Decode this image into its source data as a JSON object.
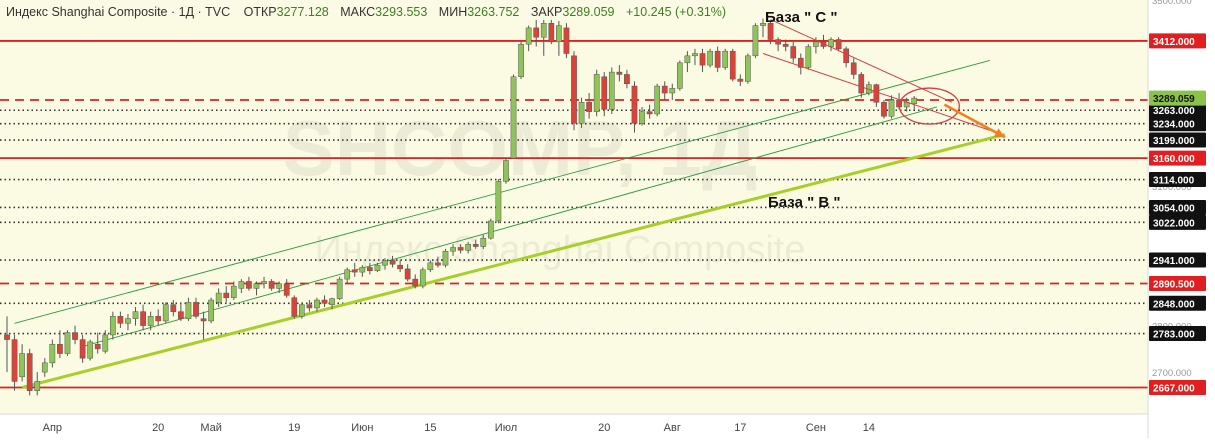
{
  "header": {
    "title": "Индекс Shanghai Composite · 1Д · TVC",
    "open_label": "ОТКР",
    "open": "3277.128",
    "high_label": "МАКС",
    "high": "3293.553",
    "low_label": "МИН",
    "low": "3263.752",
    "close_label": "ЗАКР",
    "close": "3289.059",
    "change": "+10.245 (+0.31%)"
  },
  "watermark": {
    "symbol": "SHCOMP, 1Д",
    "name": "Индекс Shanghai Composite"
  },
  "annotations": {
    "base_c": "База \" С \"",
    "base_b": "База \" В \""
  },
  "colors": {
    "background": "#ffffff",
    "plot_background": "#fbfbe4",
    "up_candle": "#8fc45a",
    "down_candle": "#d9443a",
    "level_line": "#e02020",
    "dotted_level": "#333333",
    "channel_line": "#2f9a3a",
    "trend_support": "#a7cf2a",
    "downtrend_channel": "#d04040",
    "projection_arrow": "#f08020",
    "price_badge_last": "#8bc34a"
  },
  "chart_data": {
    "type": "candlestick",
    "title": "Индекс Shanghai Composite · 1Д · TVC",
    "timeframe": "1Д",
    "ylim": [
      2610,
      3500
    ],
    "y_ticks": [
      {
        "value": 3500,
        "label": "3500.000"
      },
      {
        "value": 3300,
        "label": "3300.000"
      },
      {
        "value": 3100,
        "label": "3100.000"
      },
      {
        "value": 2900,
        "label": "2900.000"
      },
      {
        "value": 2800,
        "label": "2800.000"
      },
      {
        "value": 2700,
        "label": "2700.000"
      }
    ],
    "x_labels": [
      {
        "idx": 6,
        "label": "Апр"
      },
      {
        "idx": 20,
        "label": "20"
      },
      {
        "idx": 27,
        "label": "Май"
      },
      {
        "idx": 38,
        "label": "19"
      },
      {
        "idx": 47,
        "label": "Июн"
      },
      {
        "idx": 56,
        "label": "15"
      },
      {
        "idx": 66,
        "label": "Июл"
      },
      {
        "idx": 79,
        "label": "20"
      },
      {
        "idx": 88,
        "label": "Авг"
      },
      {
        "idx": 97,
        "label": "17"
      },
      {
        "idx": 107,
        "label": "Сен"
      },
      {
        "idx": 114,
        "label": "14"
      }
    ],
    "levels": [
      {
        "value": 3412,
        "label": "3412.000",
        "style": "solid-red"
      },
      {
        "value": 3285,
        "label": "3285.000",
        "style": "dashed-red"
      },
      {
        "value": 3263,
        "label": "3263.000",
        "style": "dotted"
      },
      {
        "value": 3234,
        "label": "3234.000",
        "style": "dotted"
      },
      {
        "value": 3199,
        "label": "3199.000",
        "style": "dotted"
      },
      {
        "value": 3160,
        "label": "3160.000",
        "style": "solid-red"
      },
      {
        "value": 3114,
        "label": "3114.000",
        "style": "dotted"
      },
      {
        "value": 3054,
        "label": "3054.000",
        "style": "dotted"
      },
      {
        "value": 3022,
        "label": "3022.000",
        "style": "dotted"
      },
      {
        "value": 2941,
        "label": "2941.000",
        "style": "dotted"
      },
      {
        "value": 2890.5,
        "label": "2890.500",
        "style": "dashed-red"
      },
      {
        "value": 2848,
        "label": "2848.000",
        "style": "dotted"
      },
      {
        "value": 2783,
        "label": "2783.000",
        "style": "dotted"
      },
      {
        "value": 2667,
        "label": "2667.000",
        "style": "solid-red"
      }
    ],
    "last_price": {
      "value": 3289.059,
      "label": "3289.059"
    },
    "candles": [
      {
        "o": 2780,
        "h": 2820,
        "l": 2700,
        "c": 2770
      },
      {
        "o": 2770,
        "h": 2780,
        "l": 2660,
        "c": 2680
      },
      {
        "o": 2690,
        "h": 2760,
        "l": 2680,
        "c": 2740
      },
      {
        "o": 2740,
        "h": 2750,
        "l": 2650,
        "c": 2660
      },
      {
        "o": 2660,
        "h": 2700,
        "l": 2650,
        "c": 2680
      },
      {
        "o": 2700,
        "h": 2730,
        "l": 2690,
        "c": 2720
      },
      {
        "o": 2720,
        "h": 2770,
        "l": 2710,
        "c": 2760
      },
      {
        "o": 2760,
        "h": 2790,
        "l": 2730,
        "c": 2740
      },
      {
        "o": 2740,
        "h": 2790,
        "l": 2735,
        "c": 2785
      },
      {
        "o": 2785,
        "h": 2800,
        "l": 2760,
        "c": 2770
      },
      {
        "o": 2770,
        "h": 2780,
        "l": 2720,
        "c": 2730
      },
      {
        "o": 2730,
        "h": 2770,
        "l": 2725,
        "c": 2765
      },
      {
        "o": 2760,
        "h": 2785,
        "l": 2740,
        "c": 2750
      },
      {
        "o": 2745,
        "h": 2790,
        "l": 2740,
        "c": 2780
      },
      {
        "o": 2780,
        "h": 2830,
        "l": 2770,
        "c": 2820
      },
      {
        "o": 2820,
        "h": 2830,
        "l": 2795,
        "c": 2805
      },
      {
        "o": 2805,
        "h": 2825,
        "l": 2790,
        "c": 2815
      },
      {
        "o": 2815,
        "h": 2840,
        "l": 2800,
        "c": 2830
      },
      {
        "o": 2830,
        "h": 2845,
        "l": 2790,
        "c": 2800
      },
      {
        "o": 2800,
        "h": 2830,
        "l": 2790,
        "c": 2820
      },
      {
        "o": 2820,
        "h": 2835,
        "l": 2800,
        "c": 2810
      },
      {
        "o": 2810,
        "h": 2850,
        "l": 2805,
        "c": 2845
      },
      {
        "o": 2845,
        "h": 2855,
        "l": 2820,
        "c": 2830
      },
      {
        "o": 2830,
        "h": 2850,
        "l": 2810,
        "c": 2815
      },
      {
        "o": 2815,
        "h": 2860,
        "l": 2810,
        "c": 2850
      },
      {
        "o": 2850,
        "h": 2860,
        "l": 2815,
        "c": 2820
      },
      {
        "o": 2815,
        "h": 2830,
        "l": 2770,
        "c": 2810
      },
      {
        "o": 2810,
        "h": 2860,
        "l": 2805,
        "c": 2855
      },
      {
        "o": 2850,
        "h": 2880,
        "l": 2840,
        "c": 2870
      },
      {
        "o": 2870,
        "h": 2885,
        "l": 2850,
        "c": 2860
      },
      {
        "o": 2860,
        "h": 2895,
        "l": 2855,
        "c": 2885
      },
      {
        "o": 2880,
        "h": 2900,
        "l": 2870,
        "c": 2895
      },
      {
        "o": 2895,
        "h": 2905,
        "l": 2875,
        "c": 2880
      },
      {
        "o": 2880,
        "h": 2895,
        "l": 2865,
        "c": 2890
      },
      {
        "o": 2890,
        "h": 2905,
        "l": 2880,
        "c": 2895
      },
      {
        "o": 2895,
        "h": 2900,
        "l": 2875,
        "c": 2880
      },
      {
        "o": 2880,
        "h": 2895,
        "l": 2870,
        "c": 2890
      },
      {
        "o": 2890,
        "h": 2900,
        "l": 2860,
        "c": 2865
      },
      {
        "o": 2860,
        "h": 2865,
        "l": 2815,
        "c": 2820
      },
      {
        "o": 2820,
        "h": 2850,
        "l": 2815,
        "c": 2845
      },
      {
        "o": 2845,
        "h": 2855,
        "l": 2830,
        "c": 2838
      },
      {
        "o": 2838,
        "h": 2860,
        "l": 2830,
        "c": 2855
      },
      {
        "o": 2855,
        "h": 2865,
        "l": 2840,
        "c": 2848
      },
      {
        "o": 2845,
        "h": 2860,
        "l": 2835,
        "c": 2858
      },
      {
        "o": 2858,
        "h": 2905,
        "l": 2855,
        "c": 2900
      },
      {
        "o": 2900,
        "h": 2925,
        "l": 2890,
        "c": 2920
      },
      {
        "o": 2920,
        "h": 2935,
        "l": 2905,
        "c": 2915
      },
      {
        "o": 2915,
        "h": 2930,
        "l": 2905,
        "c": 2925
      },
      {
        "o": 2925,
        "h": 2935,
        "l": 2910,
        "c": 2918
      },
      {
        "o": 2918,
        "h": 2935,
        "l": 2915,
        "c": 2930
      },
      {
        "o": 2930,
        "h": 2945,
        "l": 2920,
        "c": 2940
      },
      {
        "o": 2940,
        "h": 2950,
        "l": 2925,
        "c": 2932
      },
      {
        "o": 2930,
        "h": 2940,
        "l": 2915,
        "c": 2922
      },
      {
        "o": 2922,
        "h": 2932,
        "l": 2895,
        "c": 2900
      },
      {
        "o": 2900,
        "h": 2910,
        "l": 2880,
        "c": 2885
      },
      {
        "o": 2885,
        "h": 2925,
        "l": 2880,
        "c": 2920
      },
      {
        "o": 2920,
        "h": 2940,
        "l": 2915,
        "c": 2935
      },
      {
        "o": 2935,
        "h": 2948,
        "l": 2925,
        "c": 2930
      },
      {
        "o": 2930,
        "h": 2965,
        "l": 2925,
        "c": 2960
      },
      {
        "o": 2960,
        "h": 2975,
        "l": 2950,
        "c": 2968
      },
      {
        "o": 2968,
        "h": 2975,
        "l": 2955,
        "c": 2962
      },
      {
        "o": 2962,
        "h": 2980,
        "l": 2955,
        "c": 2975
      },
      {
        "o": 2975,
        "h": 2985,
        "l": 2965,
        "c": 2970
      },
      {
        "o": 2970,
        "h": 2995,
        "l": 2965,
        "c": 2988
      },
      {
        "o": 2988,
        "h": 3030,
        "l": 2985,
        "c": 3025
      },
      {
        "o": 3025,
        "h": 3115,
        "l": 3020,
        "c": 3110
      },
      {
        "o": 3110,
        "h": 3160,
        "l": 3105,
        "c": 3155
      },
      {
        "o": 3160,
        "h": 3340,
        "l": 3160,
        "c": 3335
      },
      {
        "o": 3335,
        "h": 3410,
        "l": 3330,
        "c": 3405
      },
      {
        "o": 3405,
        "h": 3445,
        "l": 3390,
        "c": 3440
      },
      {
        "o": 3440,
        "h": 3460,
        "l": 3400,
        "c": 3420
      },
      {
        "o": 3420,
        "h": 3460,
        "l": 3380,
        "c": 3450
      },
      {
        "o": 3450,
        "h": 3470,
        "l": 3405,
        "c": 3410
      },
      {
        "o": 3410,
        "h": 3455,
        "l": 3380,
        "c": 3445
      },
      {
        "o": 3440,
        "h": 3450,
        "l": 3375,
        "c": 3385
      },
      {
        "o": 3380,
        "h": 3390,
        "l": 3220,
        "c": 3235
      },
      {
        "o": 3235,
        "h": 3290,
        "l": 3225,
        "c": 3280
      },
      {
        "o": 3280,
        "h": 3300,
        "l": 3245,
        "c": 3260
      },
      {
        "o": 3260,
        "h": 3350,
        "l": 3250,
        "c": 3340
      },
      {
        "o": 3335,
        "h": 3345,
        "l": 3250,
        "c": 3265
      },
      {
        "o": 3265,
        "h": 3355,
        "l": 3255,
        "c": 3345
      },
      {
        "o": 3345,
        "h": 3360,
        "l": 3325,
        "c": 3340
      },
      {
        "o": 3340,
        "h": 3350,
        "l": 3310,
        "c": 3320
      },
      {
        "o": 3315,
        "h": 3325,
        "l": 3215,
        "c": 3235
      },
      {
        "o": 3235,
        "h": 3270,
        "l": 3230,
        "c": 3260
      },
      {
        "o": 3260,
        "h": 3275,
        "l": 3245,
        "c": 3255
      },
      {
        "o": 3255,
        "h": 3320,
        "l": 3250,
        "c": 3315
      },
      {
        "o": 3315,
        "h": 3325,
        "l": 3285,
        "c": 3300
      },
      {
        "o": 3300,
        "h": 3320,
        "l": 3285,
        "c": 3310
      },
      {
        "o": 3310,
        "h": 3370,
        "l": 3305,
        "c": 3365
      },
      {
        "o": 3365,
        "h": 3390,
        "l": 3345,
        "c": 3380
      },
      {
        "o": 3380,
        "h": 3395,
        "l": 3360,
        "c": 3385
      },
      {
        "o": 3385,
        "h": 3395,
        "l": 3345,
        "c": 3360
      },
      {
        "o": 3360,
        "h": 3395,
        "l": 3355,
        "c": 3390
      },
      {
        "o": 3390,
        "h": 3400,
        "l": 3345,
        "c": 3355
      },
      {
        "o": 3355,
        "h": 3395,
        "l": 3350,
        "c": 3390
      },
      {
        "o": 3390,
        "h": 3395,
        "l": 3325,
        "c": 3330
      },
      {
        "o": 3330,
        "h": 3340,
        "l": 3315,
        "c": 3325
      },
      {
        "o": 3325,
        "h": 3385,
        "l": 3320,
        "c": 3380
      },
      {
        "o": 3380,
        "h": 3450,
        "l": 3375,
        "c": 3445
      },
      {
        "o": 3445,
        "h": 3460,
        "l": 3420,
        "c": 3450
      },
      {
        "o": 3450,
        "h": 3455,
        "l": 3405,
        "c": 3415
      },
      {
        "o": 3415,
        "h": 3420,
        "l": 3390,
        "c": 3405
      },
      {
        "o": 3405,
        "h": 3415,
        "l": 3390,
        "c": 3400
      },
      {
        "o": 3400,
        "h": 3410,
        "l": 3365,
        "c": 3375
      },
      {
        "o": 3375,
        "h": 3385,
        "l": 3340,
        "c": 3355
      },
      {
        "o": 3355,
        "h": 3405,
        "l": 3350,
        "c": 3400
      },
      {
        "o": 3400,
        "h": 3420,
        "l": 3385,
        "c": 3410
      },
      {
        "o": 3410,
        "h": 3425,
        "l": 3395,
        "c": 3400
      },
      {
        "o": 3400,
        "h": 3420,
        "l": 3390,
        "c": 3415
      },
      {
        "o": 3415,
        "h": 3420,
        "l": 3390,
        "c": 3395
      },
      {
        "o": 3395,
        "h": 3400,
        "l": 3355,
        "c": 3365
      },
      {
        "o": 3365,
        "h": 3375,
        "l": 3330,
        "c": 3340
      },
      {
        "o": 3340,
        "h": 3345,
        "l": 3290,
        "c": 3300
      },
      {
        "o": 3300,
        "h": 3325,
        "l": 3295,
        "c": 3318
      },
      {
        "o": 3318,
        "h": 3320,
        "l": 3270,
        "c": 3280
      },
      {
        "o": 3280,
        "h": 3285,
        "l": 3245,
        "c": 3250
      },
      {
        "o": 3250,
        "h": 3295,
        "l": 3245,
        "c": 3285
      },
      {
        "o": 3285,
        "h": 3300,
        "l": 3265,
        "c": 3270
      },
      {
        "o": 3270,
        "h": 3290,
        "l": 3260,
        "c": 3280
      },
      {
        "o": 3277.128,
        "h": 3293.553,
        "l": 3263.752,
        "c": 3289.059
      }
    ],
    "drawings": {
      "support_trendline": {
        "from": {
          "idx": 2,
          "value": 2667
        },
        "to": {
          "idx": 132,
          "value": 3211
        }
      },
      "channel_upper": {
        "from": {
          "idx": 1,
          "value": 2805
        },
        "to": {
          "idx": 130,
          "value": 3370
        }
      },
      "channel_lower": {
        "from": {
          "idx": 10,
          "value": 2755
        },
        "to": {
          "idx": 123,
          "value": 3270
        }
      },
      "downtrend_channel_upper": {
        "from": {
          "idx": 101,
          "value": 3458
        },
        "to": {
          "idx": 125,
          "value": 3280
        }
      },
      "downtrend_channel_lower": {
        "from": {
          "idx": 100,
          "value": 3385
        },
        "to": {
          "idx": 130,
          "value": 3220
        }
      },
      "ellipse_center": {
        "idx": 122,
        "value": 3272
      },
      "projection_arrow": {
        "from": {
          "idx": 124,
          "value": 3275
        },
        "to": {
          "idx": 132,
          "value": 3205
        }
      }
    }
  }
}
